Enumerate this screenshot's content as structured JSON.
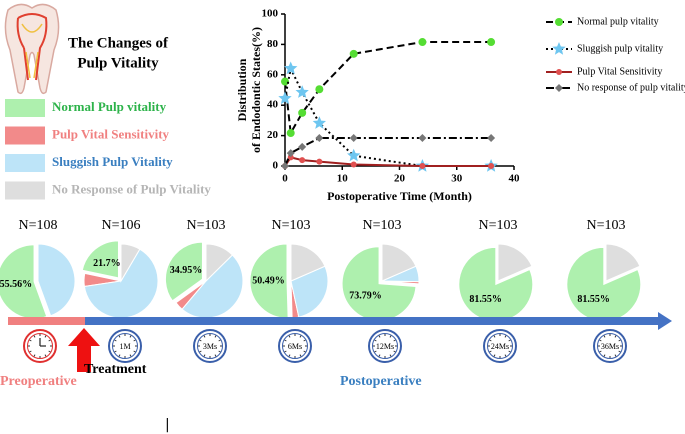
{
  "figure_title": [
    "The Changes of",
    "Pulp Vitality"
  ],
  "legend": [
    {
      "name": "Normal Pulp vitality",
      "color": "#2db34a",
      "fill": "#aef0ae"
    },
    {
      "name": "Pulp Vital Sensitivity",
      "color": "#f08080",
      "fill": "#f28a8a"
    },
    {
      "name": "Sluggish Pulp Vitality",
      "color": "#3a7fc0",
      "fill": "#bde4f8"
    },
    {
      "name": "No Response of Pulp Vitality",
      "color": "#b5b5b5",
      "fill": "#dedede"
    }
  ],
  "chart_data": [
    {
      "type": "line",
      "ylabel": [
        "Distribution",
        "of Endodontic States(%)"
      ],
      "xlabel": "Postoperative  Time (Month)",
      "x": [
        0,
        1,
        3,
        6,
        12,
        24,
        36
      ],
      "xlim": [
        0,
        40
      ],
      "xticks": [
        0,
        10,
        20,
        30,
        40
      ],
      "ylim": [
        0,
        100
      ],
      "yticks": [
        0,
        20,
        40,
        60,
        80,
        100
      ],
      "series": [
        {
          "name": "Normal pulp vitality",
          "color": "#55dd33",
          "values": [
            55.56,
            21.7,
            34.95,
            50.49,
            73.79,
            81.55,
            81.55
          ]
        },
        {
          "name": "Sluggish pulp vitality",
          "color": "#6ec6f0",
          "values": [
            44.44,
            64.15,
            48.54,
            28.16,
            6.8,
            0,
            0
          ]
        },
        {
          "name": "Pulp Vital Sensitivity",
          "color": "#e05050",
          "values": [
            0,
            5.66,
            3.88,
            2.91,
            0.97,
            0,
            0
          ]
        },
        {
          "name": "No response of pulp vitality",
          "color": "#777777",
          "values": [
            0,
            8.49,
            12.62,
            18.45,
            18.45,
            18.45,
            18.45
          ]
        }
      ]
    },
    {
      "type": "pie",
      "title": "N=108",
      "colors": [
        "#aef0ae",
        "#f28a8a",
        "#bde4f8",
        "#dedede"
      ],
      "values": [
        55.56,
        0,
        44.44,
        0
      ],
      "value_labels": [
        "55.56%",
        null,
        null,
        null
      ]
    },
    {
      "type": "pie",
      "title": "N=106",
      "colors": [
        "#aef0ae",
        "#f28a8a",
        "#bde4f8",
        "#dedede"
      ],
      "values": [
        21.7,
        5.66,
        64.15,
        8.49
      ],
      "value_labels": [
        "21.7%",
        null,
        null,
        null
      ]
    },
    {
      "type": "pie",
      "title": "N=103",
      "colors": [
        "#aef0ae",
        "#f28a8a",
        "#bde4f8",
        "#dedede"
      ],
      "values": [
        34.95,
        3.88,
        48.54,
        12.62
      ],
      "value_labels": [
        "34.95%",
        null,
        null,
        null
      ]
    },
    {
      "type": "pie",
      "title": "N=103",
      "colors": [
        "#aef0ae",
        "#f28a8a",
        "#bde4f8",
        "#dedede"
      ],
      "values": [
        50.49,
        2.91,
        28.16,
        18.45
      ],
      "value_labels": [
        "50.49%",
        null,
        null,
        null
      ]
    },
    {
      "type": "pie",
      "title": "N=103",
      "colors": [
        "#aef0ae",
        "#f28a8a",
        "#bde4f8",
        "#dedede"
      ],
      "values": [
        73.79,
        0.97,
        6.8,
        18.45
      ],
      "value_labels": [
        "73.79%",
        null,
        null,
        null
      ]
    },
    {
      "type": "pie",
      "title": "N=103",
      "colors": [
        "#aef0ae",
        "#f28a8a",
        "#bde4f8",
        "#dedede"
      ],
      "values": [
        81.55,
        0,
        0,
        18.45
      ],
      "value_labels": [
        "81.55%",
        null,
        null,
        null
      ]
    },
    {
      "type": "pie",
      "title": "N=103",
      "colors": [
        "#aef0ae",
        "#f28a8a",
        "#bde4f8",
        "#dedede"
      ],
      "values": [
        81.55,
        0,
        0,
        18.45
      ],
      "value_labels": [
        "81.55%",
        null,
        null,
        null
      ]
    }
  ],
  "timeline": {
    "clock_labels": [
      "1M",
      "3Ms",
      "6Ms",
      "12Ms",
      "24Ms",
      "36Ms"
    ],
    "treatment": "Treatment",
    "preoperative": "Preoperative",
    "postoperative": "Postoperative"
  }
}
